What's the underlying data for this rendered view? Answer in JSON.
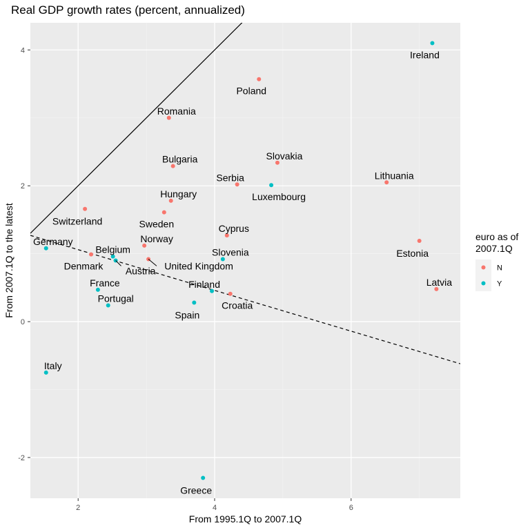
{
  "chart_data": {
    "type": "scatter",
    "title": "Real GDP growth rates (percent, annualized)",
    "xlabel": "From 1995.1Q to 2007.1Q",
    "ylabel": "From 2007.1Q to the latest",
    "xlim": [
      1.3,
      7.6
    ],
    "ylim": [
      -2.6,
      4.4
    ],
    "x_ticks": [
      2,
      4,
      6
    ],
    "y_ticks": [
      -2,
      0,
      2,
      4
    ],
    "grid": true,
    "legend": {
      "title_lines": [
        "euro as of",
        "2007.1Q"
      ],
      "placement": "right",
      "entries": [
        {
          "label": "N",
          "color": "#F8766D"
        },
        {
          "label": "Y",
          "color": "#00BFC4"
        }
      ]
    },
    "series": [
      {
        "name": "N",
        "color": "#F8766D",
        "points": [
          {
            "label": "Poland",
            "x": 4.65,
            "y": 3.57
          },
          {
            "label": "Romania",
            "x": 3.33,
            "y": 3.0
          },
          {
            "label": "Slovakia",
            "x": 4.92,
            "y": 2.34
          },
          {
            "label": "Bulgaria",
            "x": 3.39,
            "y": 2.29
          },
          {
            "label": "Serbia",
            "x": 4.33,
            "y": 2.02
          },
          {
            "label": "Lithuania",
            "x": 6.52,
            "y": 2.05
          },
          {
            "label": "Hungary",
            "x": 3.36,
            "y": 1.78
          },
          {
            "label": "Switzerland",
            "x": 2.1,
            "y": 1.66
          },
          {
            "label": "Sweden",
            "x": 3.26,
            "y": 1.61
          },
          {
            "label": "Cyprus",
            "x": 4.18,
            "y": 1.27
          },
          {
            "label": "Estonia",
            "x": 7.0,
            "y": 1.19
          },
          {
            "label": "Norway",
            "x": 2.97,
            "y": 1.12
          },
          {
            "label": "Denmark",
            "x": 2.19,
            "y": 0.99
          },
          {
            "label": "United Kingdom",
            "x": 3.03,
            "y": 0.92
          },
          {
            "label": "Latvia",
            "x": 7.25,
            "y": 0.48
          },
          {
            "label": "Croatia",
            "x": 4.23,
            "y": 0.41
          }
        ]
      },
      {
        "name": "Y",
        "color": "#00BFC4",
        "points": [
          {
            "label": "Ireland",
            "x": 7.19,
            "y": 4.1
          },
          {
            "label": "Luxembourg",
            "x": 4.83,
            "y": 2.01
          },
          {
            "label": "Germany",
            "x": 1.53,
            "y": 1.08
          },
          {
            "label": "Belgium",
            "x": 2.51,
            "y": 0.96
          },
          {
            "label": "Austria",
            "x": 2.55,
            "y": 0.9
          },
          {
            "label": "Slovenia",
            "x": 4.12,
            "y": 0.92
          },
          {
            "label": "France",
            "x": 2.29,
            "y": 0.47
          },
          {
            "label": "Finland",
            "x": 3.96,
            "y": 0.45
          },
          {
            "label": "Spain",
            "x": 3.7,
            "y": 0.28
          },
          {
            "label": "Portugal",
            "x": 2.44,
            "y": 0.24
          },
          {
            "label": "Italy",
            "x": 1.53,
            "y": -0.75
          },
          {
            "label": "Greece",
            "x": 3.83,
            "y": -2.3
          }
        ]
      }
    ],
    "reference_lines": [
      {
        "style": "solid",
        "slope": 1,
        "intercept": 0
      },
      {
        "style": "dashed",
        "slope": -0.3,
        "intercept": 1.66
      }
    ]
  }
}
